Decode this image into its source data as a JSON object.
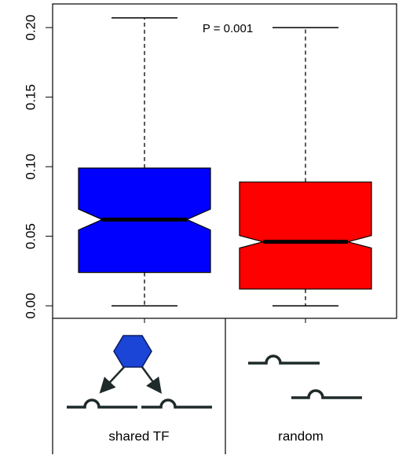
{
  "chart_data": {
    "type": "box",
    "categories": [
      "shared TF",
      "random"
    ],
    "boxes": [
      {
        "color": "#0000ff",
        "whisker_low": 0,
        "q1": 0.024,
        "notch_low": 0.0545,
        "median": 0.062,
        "notch_high": 0.0695,
        "q3": 0.099,
        "whisker_high": 0.207
      },
      {
        "color": "#ff0000",
        "whisker_low": 0,
        "q1": 0.012,
        "notch_low": 0.0415,
        "median": 0.046,
        "notch_high": 0.0505,
        "q3": 0.089,
        "whisker_high": 0.2
      }
    ],
    "annotation": "P = 0.001",
    "ylim": [
      -0.009,
      0.217
    ],
    "yticks": [
      {
        "value": 0,
        "label": "0.00"
      },
      {
        "value": 0.05,
        "label": "0.05"
      },
      {
        "value": 0.1,
        "label": "0.10"
      },
      {
        "value": 0.15,
        "label": "0.15"
      },
      {
        "value": 0.2,
        "label": "0.20"
      }
    ]
  }
}
